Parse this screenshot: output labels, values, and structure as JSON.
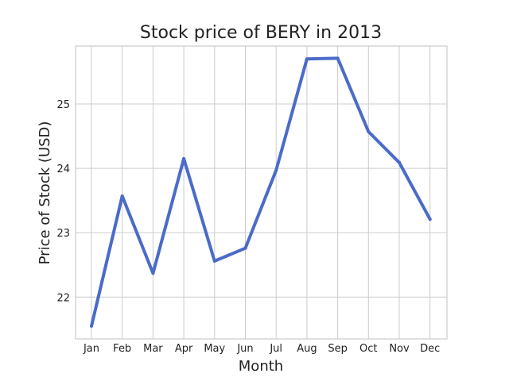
{
  "chart_data": {
    "type": "line",
    "title": "Stock price of BERY in 2013",
    "xlabel": "Month",
    "ylabel": "Price of Stock (USD)",
    "categories": [
      "Jan",
      "Feb",
      "Mar",
      "Apr",
      "May",
      "Jun",
      "Jul",
      "Aug",
      "Sep",
      "Oct",
      "Nov",
      "Dec"
    ],
    "series": [
      {
        "values": [
          21.55,
          23.57,
          22.37,
          24.15,
          22.56,
          22.76,
          23.97,
          25.7,
          25.71,
          24.57,
          24.09,
          23.21
        ]
      }
    ],
    "ylim": [
      21.35,
      25.9
    ],
    "yticks": [
      22,
      23,
      24,
      25
    ],
    "grid": true,
    "line_color": "#4a6bc9"
  }
}
